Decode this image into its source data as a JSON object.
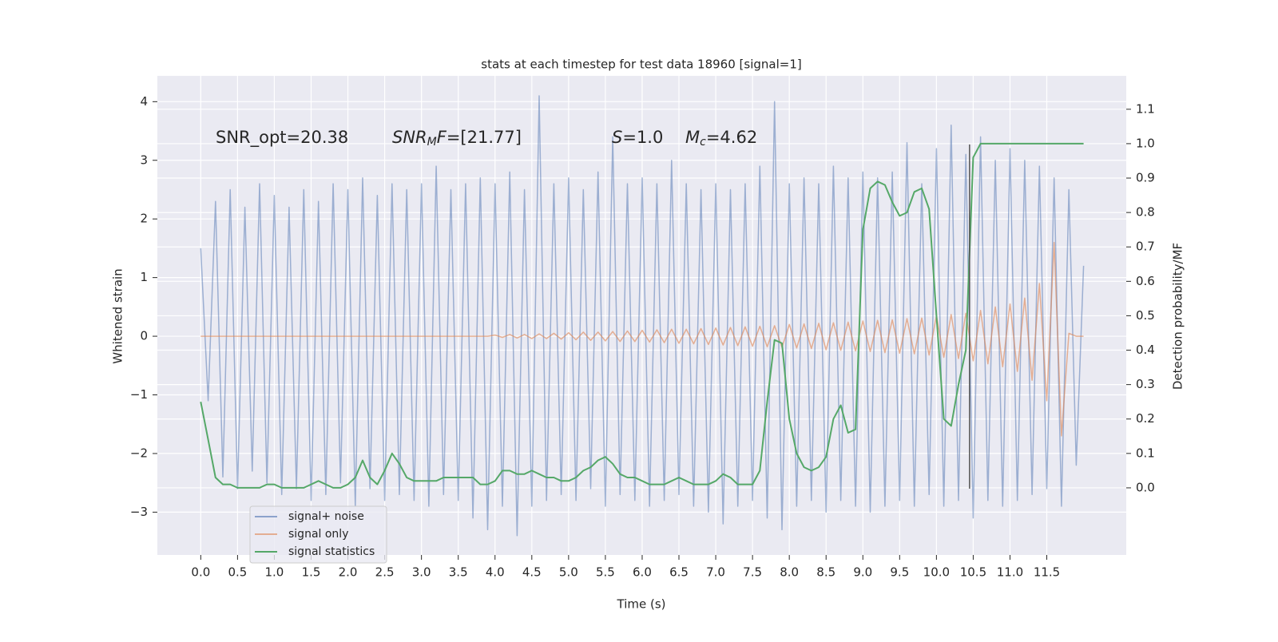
{
  "chart_data": {
    "type": "line",
    "title": "stats at each timestep for test data 18960 [signal=1]",
    "xlabel": "Time (s)",
    "ylabel": "Whitened strain",
    "y2label": "Detection probability/MF",
    "annotations": [
      [
        {
          "text": "SNR_opt=20.38"
        }
      ],
      [
        {
          "text": "SNR",
          "italic": true
        },
        {
          "text": "M",
          "italic": true,
          "sub": true
        },
        {
          "text": "F",
          "italic": true
        },
        {
          "text": "=[21.77]"
        }
      ],
      [
        {
          "text": "S",
          "italic": true
        },
        {
          "text": "=1.0"
        }
      ],
      [
        {
          "text": "M",
          "italic": true
        },
        {
          "text": "c",
          "italic": true,
          "sub": true
        },
        {
          "text": "=4.62"
        }
      ]
    ],
    "xlim": [
      -0.59,
      12.58
    ],
    "ylim": [
      -3.73,
      4.44
    ],
    "y2lim": [
      -0.195,
      1.197
    ],
    "xticks": [
      {
        "value": 0,
        "label": "0.0"
      },
      0.5,
      {
        "value": 1,
        "label": "1.0"
      },
      1.5,
      {
        "value": 2,
        "label": "2.0"
      },
      2.5,
      {
        "value": 3,
        "label": "3.0"
      },
      3.5,
      {
        "value": 4,
        "label": "4.0"
      },
      4.5,
      {
        "value": 5,
        "label": "5.0"
      },
      5.5,
      {
        "value": 6,
        "label": "6.0"
      },
      6.5,
      {
        "value": 7,
        "label": "7.0"
      },
      7.5,
      {
        "value": 8,
        "label": "8.0"
      },
      8.5,
      {
        "value": 9,
        "label": "9.0"
      },
      9.5,
      {
        "value": 10,
        "label": "10.0"
      },
      10.5,
      {
        "value": 11,
        "label": "11.0"
      },
      11.5
    ],
    "yticks": [
      {
        "value": -3,
        "label": "−3"
      },
      {
        "value": -2,
        "label": "−2"
      },
      {
        "value": -1,
        "label": "−1"
      },
      0,
      1,
      2,
      3,
      4
    ],
    "y2ticks": [
      {
        "value": 0,
        "label": "0.0"
      },
      0.1,
      0.2,
      0.3,
      0.4,
      0.5,
      0.6,
      0.7,
      0.8,
      0.9,
      {
        "value": 1,
        "label": "1.0"
      },
      1.1
    ],
    "grid": true,
    "legend": "lower left",
    "x": [
      0.0,
      0.1,
      0.2,
      0.3,
      0.4,
      0.5,
      0.6,
      0.7,
      0.8,
      0.9,
      1.0,
      1.1,
      1.2,
      1.3,
      1.4,
      1.5,
      1.6,
      1.7,
      1.8,
      1.9,
      2.0,
      2.1,
      2.2,
      2.3,
      2.4,
      2.5,
      2.6,
      2.7,
      2.8,
      2.9,
      3.0,
      3.1,
      3.2,
      3.3,
      3.4,
      3.5,
      3.6,
      3.7,
      3.8,
      3.9,
      4.0,
      4.1,
      4.2,
      4.3,
      4.4,
      4.5,
      4.6,
      4.7,
      4.8,
      4.9,
      5.0,
      5.1,
      5.2,
      5.3,
      5.4,
      5.5,
      5.6,
      5.7,
      5.8,
      5.9,
      6.0,
      6.1,
      6.2,
      6.3,
      6.4,
      6.5,
      6.6,
      6.7,
      6.8,
      6.9,
      7.0,
      7.1,
      7.2,
      7.3,
      7.4,
      7.5,
      7.6,
      7.7,
      7.8,
      7.9,
      8.0,
      8.1,
      8.2,
      8.3,
      8.4,
      8.5,
      8.6,
      8.7,
      8.8,
      8.9,
      9.0,
      9.1,
      9.2,
      9.3,
      9.4,
      9.5,
      9.6,
      9.7,
      9.8,
      9.9,
      10.0,
      10.1,
      10.2,
      10.3,
      10.4,
      10.5,
      10.6,
      10.7,
      10.8,
      10.9,
      11.0,
      11.1,
      11.2,
      11.3,
      11.4,
      11.5,
      11.6,
      11.7,
      11.8,
      11.9,
      12.0
    ],
    "series": [
      {
        "name": "signal+ noise",
        "color": "#4c72b0",
        "values": [
          1.5,
          -1.1,
          2.3,
          -2.4,
          2.5,
          -2.6,
          2.2,
          -2.3,
          2.6,
          -2.5,
          2.4,
          -2.7,
          2.2,
          -2.6,
          2.5,
          -2.8,
          2.3,
          -2.7,
          2.6,
          -2.5,
          2.5,
          -2.9,
          2.7,
          -2.6,
          2.4,
          -2.8,
          2.6,
          -2.7,
          2.5,
          -2.8,
          2.6,
          -2.9,
          2.9,
          -2.7,
          2.5,
          -2.8,
          2.6,
          -3.1,
          2.7,
          -3.3,
          2.6,
          -2.9,
          2.8,
          -3.4,
          2.5,
          -2.9,
          4.1,
          -2.8,
          2.6,
          -2.7,
          2.7,
          -2.8,
          2.5,
          -2.6,
          2.8,
          -2.9,
          3.4,
          -2.7,
          2.6,
          -2.8,
          2.7,
          -2.9,
          2.6,
          -2.8,
          3.0,
          -2.7,
          2.6,
          -2.9,
          2.5,
          -3.0,
          2.6,
          -3.2,
          2.5,
          -2.9,
          2.6,
          -2.8,
          2.9,
          -3.1,
          4.0,
          -3.3,
          2.6,
          -2.9,
          2.7,
          -2.8,
          2.6,
          -3.0,
          2.9,
          -2.8,
          2.7,
          -2.9,
          2.8,
          -3.0,
          2.7,
          -2.9,
          2.8,
          -2.8,
          3.3,
          -2.9,
          2.6,
          -2.7,
          3.2,
          -2.9,
          3.6,
          -2.8,
          3.1,
          -3.1,
          3.4,
          -2.8,
          3.0,
          -2.9,
          3.2,
          -2.8,
          3.0,
          -2.7,
          2.9,
          -2.6,
          2.7,
          -2.9,
          2.5,
          -2.2,
          1.2
        ]
      },
      {
        "name": "signal only",
        "color": "#dd8452",
        "values": [
          0,
          0,
          0,
          0,
          0,
          0,
          0,
          0,
          0,
          0,
          0,
          0,
          0,
          0,
          0,
          0,
          0,
          0,
          0,
          0,
          0,
          0,
          0,
          0,
          0,
          0,
          0,
          0,
          0,
          0,
          0,
          0,
          0,
          0,
          0,
          0,
          0,
          0,
          0,
          0,
          0.02,
          -0.02,
          0.03,
          -0.03,
          0.03,
          -0.04,
          0.04,
          -0.04,
          0.05,
          -0.05,
          0.06,
          -0.06,
          0.07,
          -0.07,
          0.07,
          -0.08,
          0.08,
          -0.09,
          0.09,
          -0.09,
          0.1,
          -0.1,
          0.11,
          -0.11,
          0.12,
          -0.12,
          0.12,
          -0.13,
          0.13,
          -0.14,
          0.14,
          -0.15,
          0.15,
          -0.16,
          0.16,
          -0.17,
          0.17,
          -0.18,
          0.18,
          -0.19,
          0.2,
          -0.2,
          0.21,
          -0.21,
          0.22,
          -0.23,
          0.23,
          -0.24,
          0.24,
          -0.25,
          0.26,
          -0.26,
          0.27,
          -0.28,
          0.28,
          -0.29,
          0.3,
          -0.3,
          0.31,
          -0.32,
          0.35,
          -0.36,
          0.37,
          -0.38,
          0.39,
          -0.42,
          0.44,
          -0.47,
          0.5,
          -0.52,
          0.55,
          -0.6,
          0.65,
          -0.75,
          0.9,
          -1.1,
          1.6,
          -1.7,
          0.05,
          0,
          0
        ]
      },
      {
        "name": "signal statistics",
        "color": "#55a868",
        "axis": "y2",
        "values": [
          0.25,
          0.14,
          0.03,
          0.01,
          0.01,
          0,
          0,
          0,
          0,
          0.01,
          0.01,
          0,
          0,
          0,
          0,
          0.01,
          0.02,
          0.01,
          0,
          0,
          0.01,
          0.03,
          0.08,
          0.03,
          0.01,
          0.05,
          0.1,
          0.07,
          0.03,
          0.02,
          0.02,
          0.02,
          0.02,
          0.03,
          0.03,
          0.03,
          0.03,
          0.03,
          0.01,
          0.01,
          0.02,
          0.05,
          0.05,
          0.04,
          0.04,
          0.05,
          0.04,
          0.03,
          0.03,
          0.02,
          0.02,
          0.03,
          0.05,
          0.06,
          0.08,
          0.09,
          0.07,
          0.04,
          0.03,
          0.03,
          0.02,
          0.01,
          0.01,
          0.01,
          0.02,
          0.03,
          0.02,
          0.01,
          0.01,
          0.01,
          0.02,
          0.04,
          0.03,
          0.01,
          0.01,
          0.01,
          0.05,
          0.25,
          0.43,
          0.42,
          0.2,
          0.1,
          0.06,
          0.05,
          0.06,
          0.09,
          0.2,
          0.24,
          0.16,
          0.17,
          0.75,
          0.87,
          0.89,
          0.88,
          0.83,
          0.79,
          0.8,
          0.86,
          0.87,
          0.81,
          0.5,
          0.2,
          0.18,
          0.3,
          0.4,
          0.96,
          1,
          1,
          1,
          1,
          1,
          1,
          1,
          1,
          1,
          1,
          1,
          1,
          1,
          1,
          1
        ]
      }
    ],
    "vline": {
      "x": 10.45,
      "y": [
        -2.6,
        3.27
      ],
      "color": "#555555"
    }
  }
}
